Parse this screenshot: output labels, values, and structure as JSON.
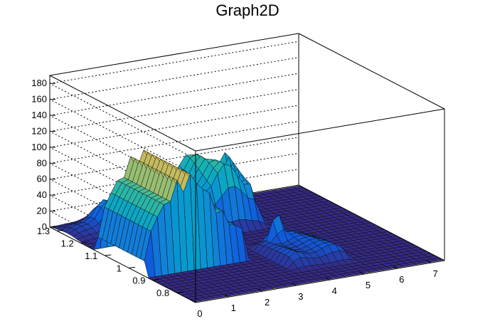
{
  "chart_data": {
    "type": "surface",
    "title": "Graph2D",
    "xlabel": "",
    "ylabel": "",
    "zlabel": "",
    "x_ticks": [
      "0",
      "1",
      "2",
      "3",
      "4",
      "5",
      "6",
      "7"
    ],
    "y_ticks": [
      "0.8",
      "0.9",
      "1",
      "1.1",
      "1.2",
      "1.3"
    ],
    "z_ticks": [
      "0",
      "20",
      "40",
      "60",
      "80",
      "100",
      "120",
      "140",
      "160",
      "180"
    ],
    "xlim": [
      0,
      7.4
    ],
    "ylim": [
      0.72,
      1.33
    ],
    "zlim": [
      0,
      190
    ],
    "grid": true,
    "colormap": "parula",
    "features": [
      {
        "shape": "ridge",
        "x": [
          0.0,
          3.0
        ],
        "y_center": 1.03,
        "y_halfwidth": 0.11,
        "peak_z": 120,
        "peak_x": 1.3
      },
      {
        "shape": "bump",
        "x": [
          2.2,
          5.0
        ],
        "y": [
          1.1,
          1.3
        ],
        "z": 80
      },
      {
        "shape": "spike",
        "x": 4.2,
        "y": 0.97,
        "z": 55
      },
      {
        "shape": "bump",
        "x": [
          3.5,
          5.5
        ],
        "y": [
          0.8,
          1.02
        ],
        "z": 18
      },
      {
        "shape": "hill",
        "x": 1.4,
        "y": 1.26,
        "z": 40
      }
    ]
  }
}
